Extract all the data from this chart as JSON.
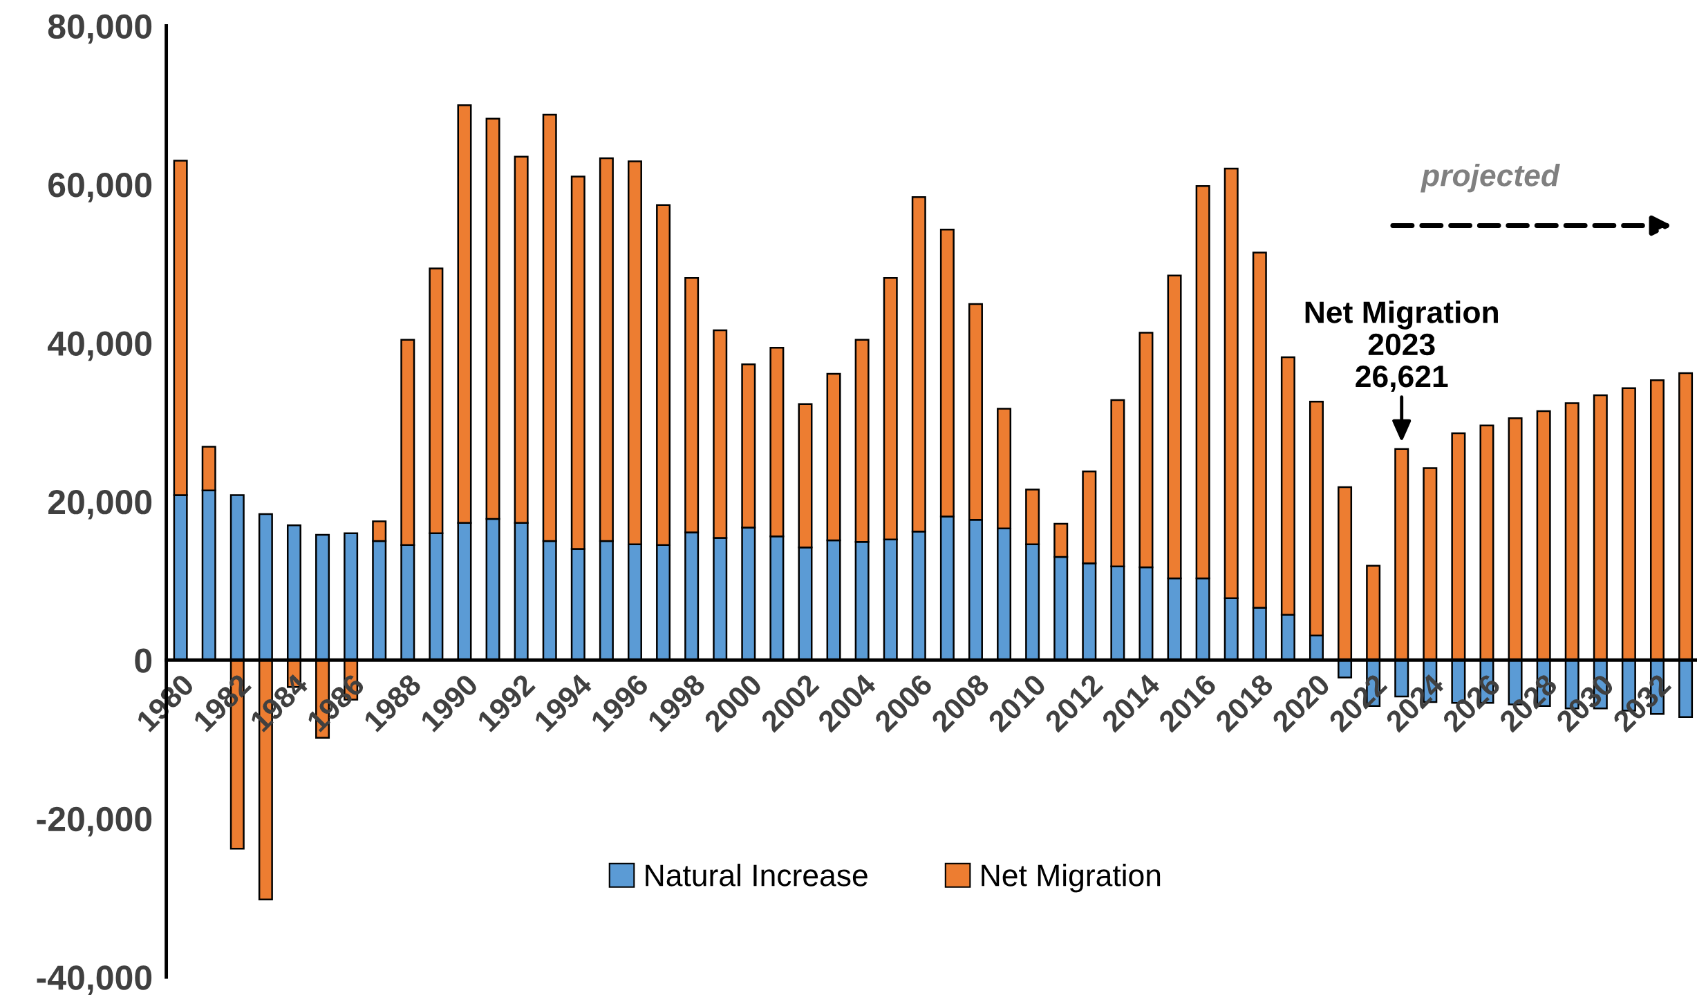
{
  "chart_data": {
    "type": "bar",
    "stacked": true,
    "x": [
      1980,
      1981,
      1982,
      1983,
      1984,
      1985,
      1986,
      1987,
      1988,
      1989,
      1990,
      1991,
      1992,
      1993,
      1994,
      1995,
      1996,
      1997,
      1998,
      1999,
      2000,
      2001,
      2002,
      2003,
      2004,
      2005,
      2006,
      2007,
      2008,
      2009,
      2010,
      2011,
      2012,
      2013,
      2014,
      2015,
      2016,
      2017,
      2018,
      2019,
      2020,
      2021,
      2022,
      2023,
      2024,
      2025,
      2026,
      2027,
      2028,
      2029,
      2030,
      2031,
      2032,
      2033
    ],
    "series": [
      {
        "name": "Natural Increase",
        "color": "#5b9bd5",
        "values": [
          20800,
          21400,
          20800,
          18400,
          17000,
          15800,
          16000,
          15000,
          14500,
          16000,
          17300,
          17800,
          17300,
          15000,
          14000,
          15000,
          14600,
          14500,
          16100,
          15400,
          16700,
          15600,
          14200,
          15100,
          14900,
          15200,
          16200,
          18100,
          17700,
          16600,
          14600,
          13000,
          12200,
          11800,
          11700,
          10300,
          10300,
          7800,
          6600,
          5700,
          3100,
          -2200,
          -5800,
          -4600,
          -5300,
          -5400,
          -5400,
          -5600,
          -5800,
          -6100,
          -6100,
          -6400,
          -6800,
          -7200
        ]
      },
      {
        "name": "Net Migration",
        "color": "#ed7d31",
        "values": [
          42200,
          5500,
          -23800,
          -30200,
          -3400,
          -9800,
          -5000,
          2500,
          25900,
          33400,
          52700,
          50500,
          46200,
          53800,
          47000,
          48300,
          48300,
          42900,
          32100,
          26200,
          20600,
          23800,
          18100,
          21000,
          25500,
          33000,
          42200,
          36200,
          27200,
          15100,
          6900,
          4200,
          11600,
          21000,
          29600,
          38200,
          49500,
          54200,
          44800,
          32500,
          29500,
          21800,
          11900,
          26621,
          24200,
          28600,
          29600,
          30500,
          31400,
          32400,
          33400,
          34300,
          35300,
          36200
        ]
      }
    ],
    "xlim": [
      1979.5,
      2033.4
    ],
    "xticks": [
      1980,
      1982,
      1984,
      1986,
      1988,
      1990,
      1992,
      1994,
      1996,
      1998,
      2000,
      2002,
      2004,
      2006,
      2008,
      2010,
      2012,
      2014,
      2016,
      2018,
      2020,
      2022,
      2024,
      2026,
      2028,
      2030,
      2032
    ],
    "ylim": [
      -40000,
      80000
    ],
    "yticks": [
      {
        "value": -40000,
        "label": "-40,000"
      },
      {
        "value": -20000,
        "label": "-20,000"
      },
      0,
      {
        "value": 20000,
        "label": "20,000"
      },
      {
        "value": 40000,
        "label": "40,000"
      },
      {
        "value": 60000,
        "label": "60,000"
      },
      {
        "value": 80000,
        "label": "80,000"
      }
    ],
    "grid": false,
    "legend": "bottom",
    "annotations": [
      {
        "text": "Net Migration\n2023\n26,621",
        "x": 2023,
        "y": 26621
      },
      "projected"
    ]
  }
}
